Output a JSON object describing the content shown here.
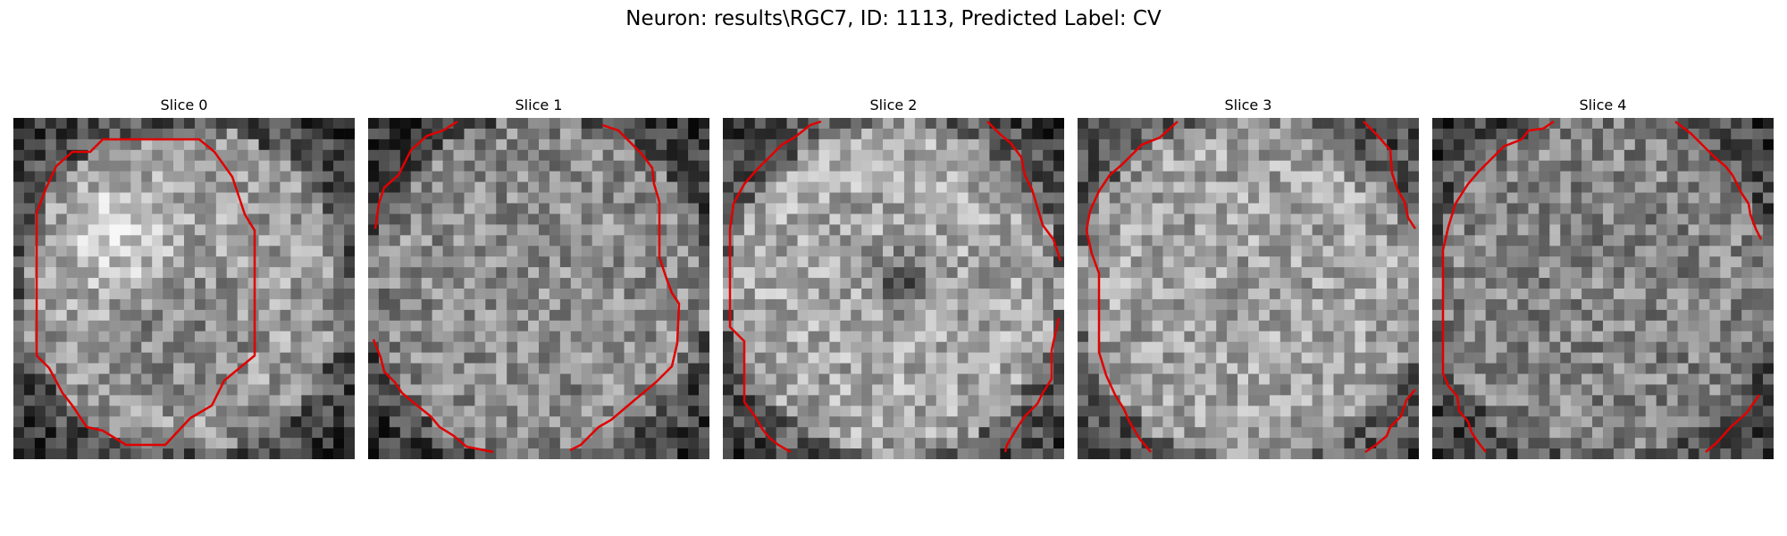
{
  "title": "Neuron: results\\RGC7, ID: 1113, Predicted Label: CV",
  "image": {
    "grid": 32,
    "colormap": "gray",
    "contour_color": "#e00000"
  },
  "slices": [
    {
      "label": "Slice 0",
      "seed": 101,
      "center_brightness": "bright upper-left blob",
      "contour_shape": "closed octagon"
    },
    {
      "label": "Slice 1",
      "seed": 202,
      "center_brightness": "mottled",
      "contour_shape": "open arcs"
    },
    {
      "label": "Slice 2",
      "seed": 303,
      "center_brightness": "bright with dark center spot",
      "contour_shape": "open arcs"
    },
    {
      "label": "Slice 3",
      "seed": 404,
      "center_brightness": "bright mottled",
      "contour_shape": "open arcs"
    },
    {
      "label": "Slice 4",
      "seed": 505,
      "center_brightness": "mid gray mottled",
      "contour_shape": "open arcs"
    }
  ]
}
